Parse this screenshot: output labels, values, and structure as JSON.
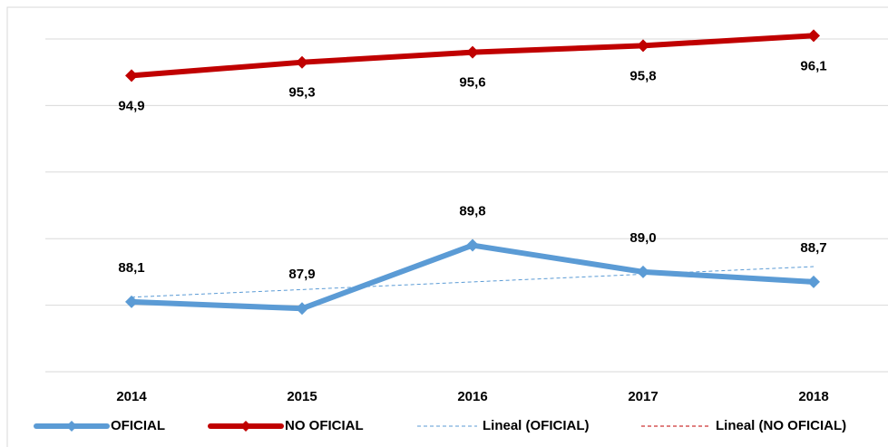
{
  "chart_data": {
    "type": "line",
    "categories": [
      "2014",
      "2015",
      "2016",
      "2017",
      "2018"
    ],
    "series": [
      {
        "name": "OFICIAL",
        "color": "#5b9bd5",
        "values": [
          88.1,
          87.9,
          89.8,
          89.0,
          88.7
        ],
        "value_labels": [
          "88,1",
          "87,9",
          "89,8",
          "89,0",
          "88,7"
        ],
        "label_position": "above",
        "trendline": {
          "name": "Lineal (OFICIAL)"
        }
      },
      {
        "name": "NO OFICIAL",
        "color": "#c00000",
        "values": [
          94.9,
          95.3,
          95.6,
          95.8,
          96.1
        ],
        "value_labels": [
          "94,9",
          "95,3",
          "95,6",
          "95,8",
          "96,1"
        ],
        "label_position": "below",
        "trendline": {
          "name": "Lineal (NO OFICIAL)"
        }
      }
    ],
    "ylim": [
      86,
      96
    ],
    "yticks": [
      86,
      88,
      90,
      92,
      94,
      96
    ],
    "grid": true,
    "legend": "bottom"
  }
}
